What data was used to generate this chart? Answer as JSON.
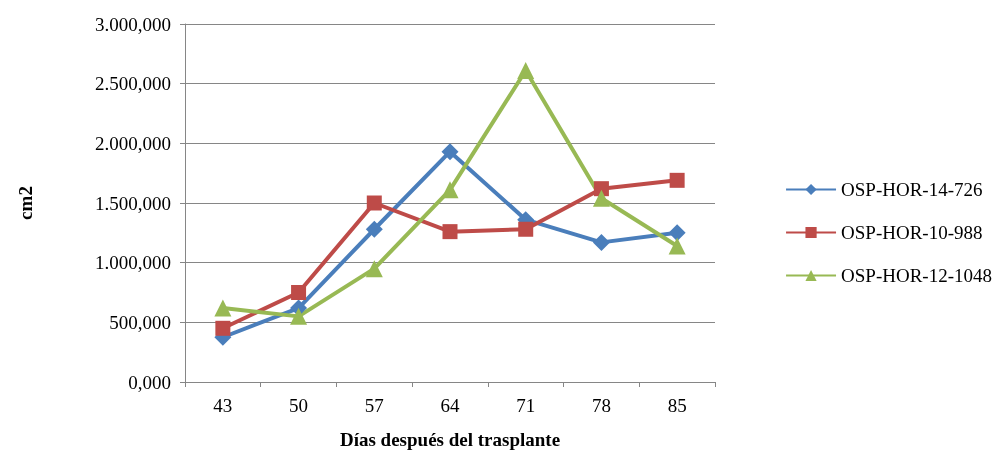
{
  "chart_data": {
    "type": "line",
    "xlabel": "Días después del trasplante",
    "ylabel": "cm2",
    "categories": [
      "43",
      "50",
      "57",
      "64",
      "71",
      "78",
      "85"
    ],
    "ylim": [
      0,
      3000
    ],
    "yticks": [
      {
        "value": 0,
        "label": "0,000"
      },
      {
        "value": 500,
        "label": "500,000"
      },
      {
        "value": 1000,
        "label": "1.000,000"
      },
      {
        "value": 1500,
        "label": "1.500,000"
      },
      {
        "value": 2000,
        "label": "2.000,000"
      },
      {
        "value": 2500,
        "label": "2.500,000"
      },
      {
        "value": 3000,
        "label": "3.000,000"
      }
    ],
    "grid": "y",
    "legend": "right",
    "series": [
      {
        "name": "OSP-HOR-14-726",
        "color": "#4a7ebb",
        "marker": "diamond",
        "values": [
          375,
          620,
          1280,
          1930,
          1360,
          1170,
          1250
        ]
      },
      {
        "name": "OSP-HOR-10-988",
        "color": "#be4b48",
        "marker": "square",
        "values": [
          450,
          750,
          1500,
          1260,
          1280,
          1620,
          1690
        ]
      },
      {
        "name": "OSP-HOR-12-1048",
        "color": "#98b954",
        "marker": "triangle",
        "values": [
          620,
          550,
          950,
          1610,
          2610,
          1540,
          1140
        ]
      }
    ]
  }
}
